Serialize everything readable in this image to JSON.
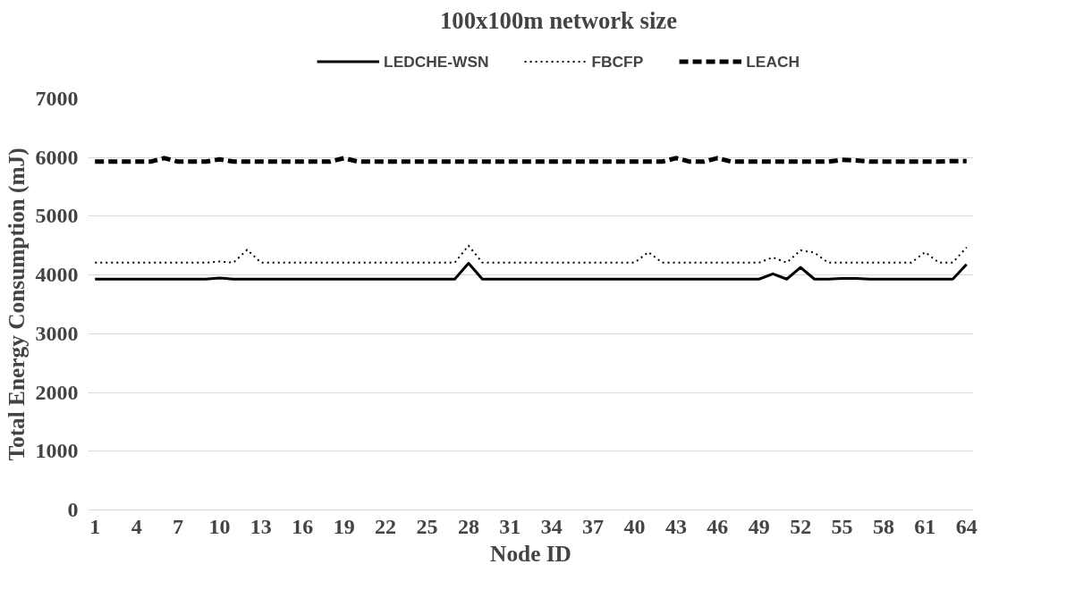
{
  "chart_data": {
    "type": "line",
    "title": "100x100m network size",
    "xlabel": "Node ID",
    "ylabel": "Total Energy Consumption (mJ)",
    "categories": [
      "1",
      null,
      null,
      "4",
      null,
      null,
      "7",
      null,
      null,
      "10",
      null,
      null,
      "13",
      null,
      null,
      "16",
      null,
      null,
      "19",
      null,
      null,
      "22",
      null,
      null,
      "25",
      null,
      null,
      "28",
      null,
      null,
      "31",
      null,
      null,
      "34",
      null,
      null,
      "37",
      null,
      null,
      "40",
      null,
      null,
      "43",
      null,
      null,
      "46",
      null,
      null,
      "49",
      null,
      null,
      "52",
      null,
      null,
      "55",
      null,
      null,
      "58",
      null,
      null,
      "61",
      null,
      null,
      "64"
    ],
    "series": [
      {
        "name": "LEDCHE-WSN",
        "color": "#000000",
        "line_style": "solid",
        "values": [
          3930,
          3930,
          3930,
          3930,
          3930,
          3930,
          3930,
          3930,
          3930,
          3950,
          3930,
          3930,
          3930,
          3930,
          3930,
          3930,
          3930,
          3930,
          3930,
          3930,
          3930,
          3930,
          3930,
          3930,
          3930,
          3930,
          3930,
          4200,
          3930,
          3930,
          3930,
          3930,
          3930,
          3930,
          3930,
          3930,
          3930,
          3930,
          3930,
          3930,
          3930,
          3930,
          3930,
          3930,
          3930,
          3930,
          3930,
          3930,
          3930,
          4020,
          3930,
          4130,
          3930,
          3930,
          3940,
          3940,
          3930,
          3930,
          3930,
          3930,
          3930,
          3930,
          3930,
          4180
        ]
      },
      {
        "name": "FBCFP",
        "color": "#000000",
        "line_style": "dotted",
        "values": [
          4210,
          4210,
          4210,
          4210,
          4210,
          4210,
          4210,
          4210,
          4210,
          4230,
          4210,
          4430,
          4210,
          4210,
          4210,
          4210,
          4210,
          4210,
          4210,
          4210,
          4210,
          4210,
          4210,
          4210,
          4210,
          4210,
          4210,
          4500,
          4210,
          4210,
          4210,
          4210,
          4210,
          4210,
          4210,
          4210,
          4210,
          4210,
          4210,
          4210,
          4390,
          4210,
          4210,
          4210,
          4210,
          4210,
          4210,
          4210,
          4210,
          4300,
          4210,
          4420,
          4380,
          4210,
          4210,
          4210,
          4210,
          4210,
          4210,
          4210,
          4390,
          4210,
          4210,
          4470
        ]
      },
      {
        "name": "LEACH",
        "color": "#000000",
        "line_style": "dashed",
        "values": [
          5930,
          5930,
          5930,
          5930,
          5930,
          5990,
          5930,
          5930,
          5930,
          5970,
          5930,
          5930,
          5930,
          5930,
          5930,
          5930,
          5930,
          5930,
          5990,
          5930,
          5930,
          5930,
          5930,
          5930,
          5930,
          5930,
          5930,
          5930,
          5930,
          5930,
          5930,
          5930,
          5930,
          5930,
          5930,
          5930,
          5930,
          5930,
          5930,
          5930,
          5930,
          5930,
          5990,
          5930,
          5930,
          5990,
          5930,
          5930,
          5930,
          5930,
          5930,
          5930,
          5930,
          5930,
          5960,
          5950,
          5930,
          5930,
          5930,
          5930,
          5930,
          5930,
          5940,
          5940
        ]
      }
    ],
    "ylim": [
      0,
      7000
    ],
    "yticks": [
      0,
      1000,
      2000,
      3000,
      4000,
      5000,
      6000,
      7000
    ],
    "grid": "y",
    "legend": "top",
    "marker": "none"
  }
}
